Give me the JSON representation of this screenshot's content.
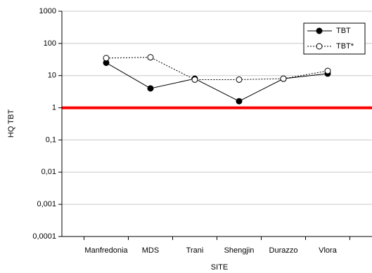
{
  "chart_data": {
    "type": "line",
    "x_label": "SITE",
    "y_label": "HQ TBT",
    "categories": [
      "Manfredonia",
      "MDS",
      "Trani",
      "Shengjin",
      "Durazzo",
      "Vlora"
    ],
    "series": [
      {
        "name": "TBT",
        "color": "#000000",
        "line_style": "solid",
        "marker": "filled",
        "values": [
          25,
          4,
          8,
          1.6,
          8,
          11.5
        ]
      },
      {
        "name": "TBT*",
        "color": "#000000",
        "line_style": "dotted",
        "marker": "open",
        "values": [
          35,
          37,
          7.5,
          7.5,
          8,
          14
        ]
      }
    ],
    "ylim": [
      0.0001,
      1000
    ],
    "log_y": true,
    "yticks": [
      {
        "value": 0.0001,
        "label": "0,0001"
      },
      {
        "value": 0.001,
        "label": "0,001"
      },
      {
        "value": 0.01,
        "label": "0,01"
      },
      {
        "value": 0.1,
        "label": "0,1"
      },
      1,
      10,
      100,
      1000
    ],
    "grid": true,
    "legend": "upper right",
    "reference_line": {
      "value": 1,
      "color": "#ff0000"
    }
  }
}
